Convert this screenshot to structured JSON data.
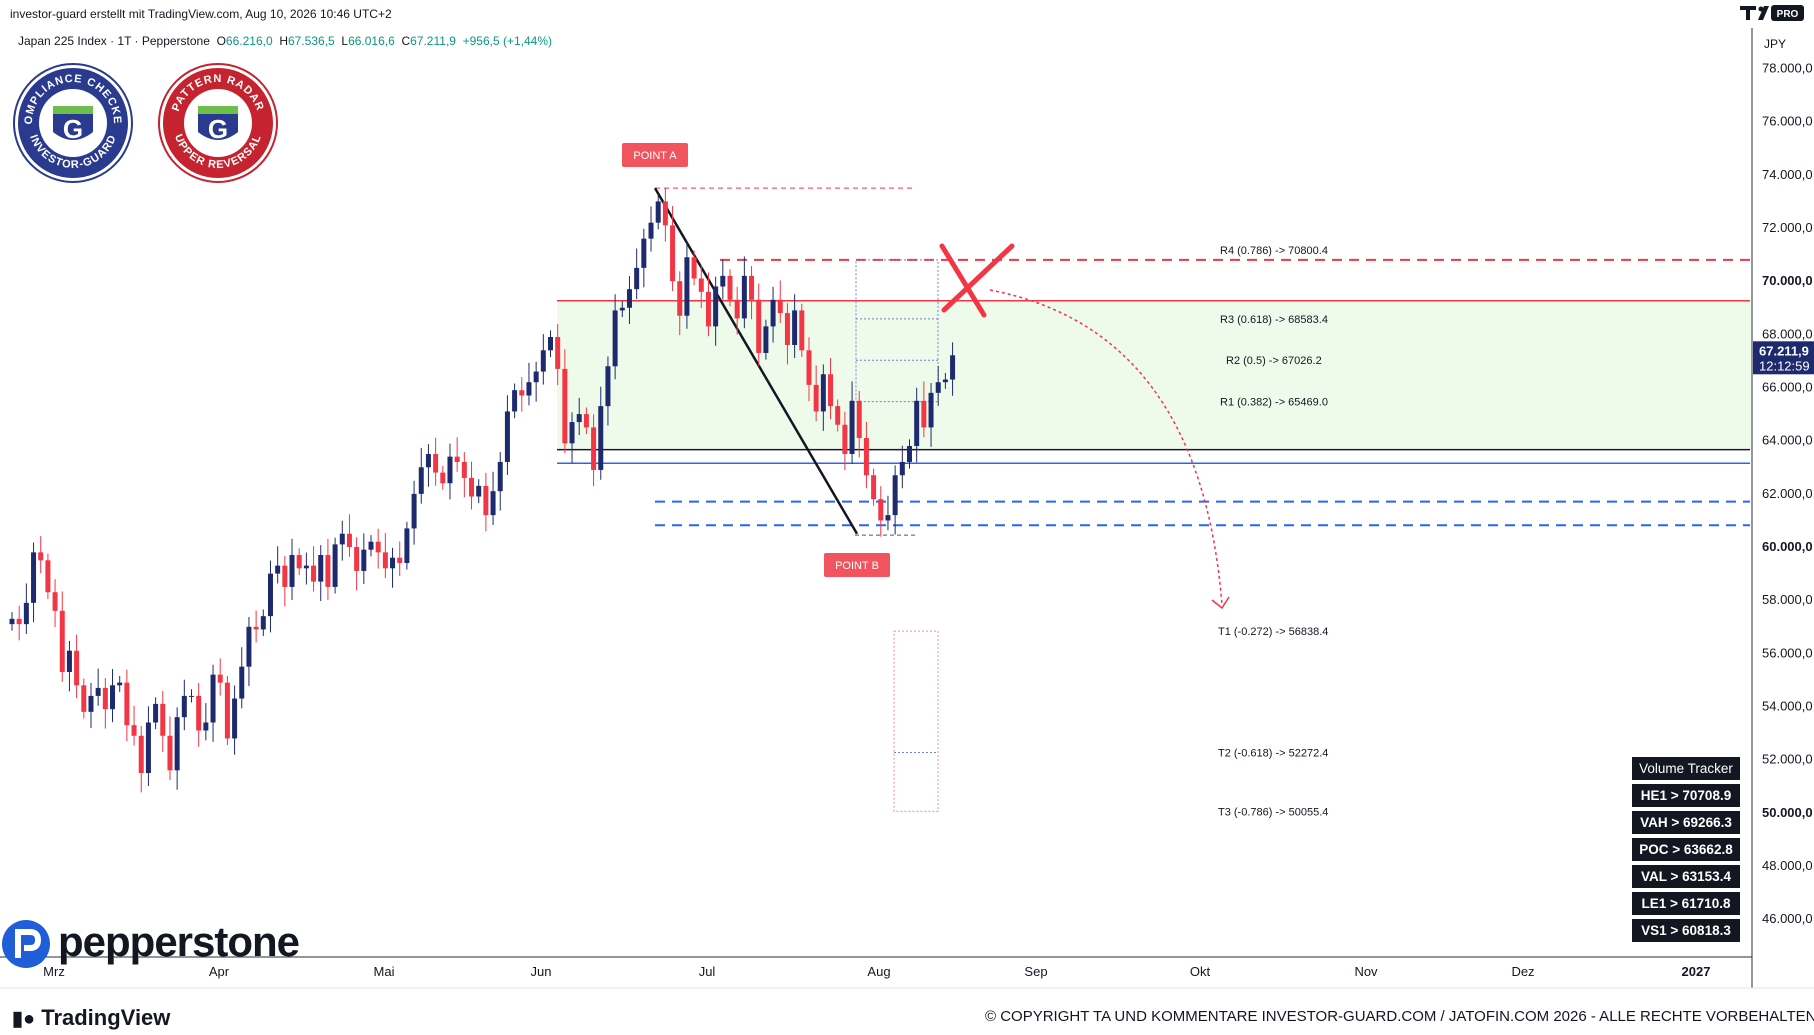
{
  "header": {
    "credit": "investor-guard erstellt mit TradingView.com, Aug 10, 2026 10:46 UTC+2",
    "pro_label": "PRO"
  },
  "legend": {
    "symbol": "Japan 225 Index · 1T · Pepperstone",
    "o_label": "O",
    "o": "66.216,0",
    "h_label": "H",
    "h": "67.536,5",
    "l_label": "L",
    "l": "66.016,6",
    "c_label": "C",
    "c": "67.211,9",
    "change": "+956,5 (+1,44%)"
  },
  "badges": [
    {
      "top": "COMPLIANCE CHECKED",
      "bottom": "INVESTOR-GUARD",
      "letter": "G",
      "color": "#2a3b8f"
    },
    {
      "top": "PATTERN RADAR",
      "bottom": "UPPER REVERSAL",
      "letter": "G",
      "color": "#c4232f"
    }
  ],
  "labels": {
    "point_a": "POINT A",
    "point_b": "POINT B"
  },
  "levels": {
    "r4": "R4 (0.786) -> 70800.4",
    "r3": "R3 (0.618) -> 68583.4",
    "r2": "R2 (0.5) -> 67026.2",
    "r1": "R1 (0.382) -> 65469.0",
    "t1": "T1 (-0.272) -> 56838.4",
    "t2": "T2 (-0.618) -> 52272.4",
    "t3": "T3 (-0.786) -> 50055.4"
  },
  "volume_tracker": {
    "title": "Volume Tracker",
    "rows": [
      "HE1 > 70708.9",
      "VAH > 69266.3",
      "POC > 63662.8",
      "VAL > 63153.4",
      "LE1 > 61710.8",
      "VS1 > 60818.3"
    ]
  },
  "price_axis": {
    "currency": "JPY",
    "ticks": [
      "78.000,0",
      "76.000,0",
      "74.000,0",
      "72.000,0",
      "70.000,0",
      "68.000,0",
      "66.000,0",
      "64.000,0",
      "62.000,0",
      "60.000,0",
      "58.000,0",
      "56.000,0",
      "54.000,0",
      "52.000,0",
      "50.000,0",
      "48.000,0",
      "46.000,0"
    ],
    "last_price": "67.211,9",
    "countdown": "12:12:59"
  },
  "time_axis": {
    "labels": [
      "Mrz",
      "Apr",
      "Mai",
      "Jun",
      "Jul",
      "Aug",
      "Sep",
      "Okt",
      "Nov",
      "Dez",
      "2027"
    ]
  },
  "branding": {
    "broker": "pepperstone",
    "platform": "TradingView",
    "copyright": "© COPYRIGHT TA UND KOMMENTARE INVESTOR-GUARD.COM / JATOFIN.COM 2026 - ALLE RECHTE VORBEHALTEN"
  },
  "colors": {
    "up": "#1e2a6e",
    "down": "#f23645",
    "fib_red": "#f23645",
    "fib_blue": "#2962ff",
    "zone": "#eefbea"
  },
  "chart_data": {
    "type": "candlestick",
    "title": "Japan 225 Index · 1T · Pepperstone",
    "ylabel": "JPY",
    "ylim": [
      45000,
      79000
    ],
    "x_labels": [
      "Mrz",
      "Apr",
      "Mai",
      "Jun",
      "Jul",
      "Aug",
      "Sep",
      "Okt",
      "Nov",
      "Dez",
      "2027"
    ],
    "closes": [
      57300,
      57100,
      57900,
      59800,
      59500,
      58300,
      57600,
      55300,
      56100,
      54800,
      53800,
      54400,
      54700,
      53900,
      54800,
      54900,
      53300,
      52900,
      51500,
      53400,
      54100,
      52900,
      51600,
      53600,
      54400,
      54400,
      53100,
      53400,
      55200,
      54900,
      52800,
      54300,
      55500,
      57000,
      56900,
      57400,
      59000,
      59300,
      58500,
      59700,
      59200,
      59300,
      58700,
      59700,
      58500,
      60100,
      60500,
      60000,
      59100,
      59900,
      60200,
      59800,
      59200,
      59600,
      59400,
      60700,
      62000,
      63000,
      63500,
      62800,
      62400,
      63400,
      63200,
      62600,
      61900,
      62300,
      61200,
      62100,
      63200,
      65100,
      65900,
      65700,
      66200,
      66600,
      67400,
      67900,
      66700,
      63900,
      64700,
      65000,
      64500,
      62900,
      65300,
      66800,
      68900,
      69000,
      69700,
      70500,
      71600,
      72200,
      73000,
      72100,
      70000,
      68700,
      70900,
      70100,
      69600,
      68300,
      69800,
      70200,
      69300,
      68600,
      70200,
      69300,
      67300,
      68300,
      69300,
      68800,
      67600,
      68900,
      67400,
      66100,
      65100,
      66500,
      65300,
      64600,
      63500,
      65500,
      64100,
      62700,
      61800,
      61000,
      61200,
      62700,
      63200,
      63800,
      65500,
      64500,
      65800,
      66200,
      66300,
      67212
    ],
    "levels": [
      {
        "name": "R4 (0.786)",
        "value": 70800.4
      },
      {
        "name": "R3 (0.618)",
        "value": 68583.4
      },
      {
        "name": "R2 (0.5)",
        "value": 67026.2
      },
      {
        "name": "R1 (0.382)",
        "value": 65469.0
      },
      {
        "name": "T1 (-0.272)",
        "value": 56838.4
      },
      {
        "name": "T2 (-0.618)",
        "value": 52272.4
      },
      {
        "name": "T3 (-0.786)",
        "value": 50055.4
      }
    ],
    "volume_profile": {
      "HE1": 70708.9,
      "VAH": 69266.3,
      "POC": 63662.8,
      "VAL": 63153.4,
      "LE1": 61710.8,
      "VS1": 60818.3
    },
    "point_a": 73500,
    "point_b": 60500
  }
}
